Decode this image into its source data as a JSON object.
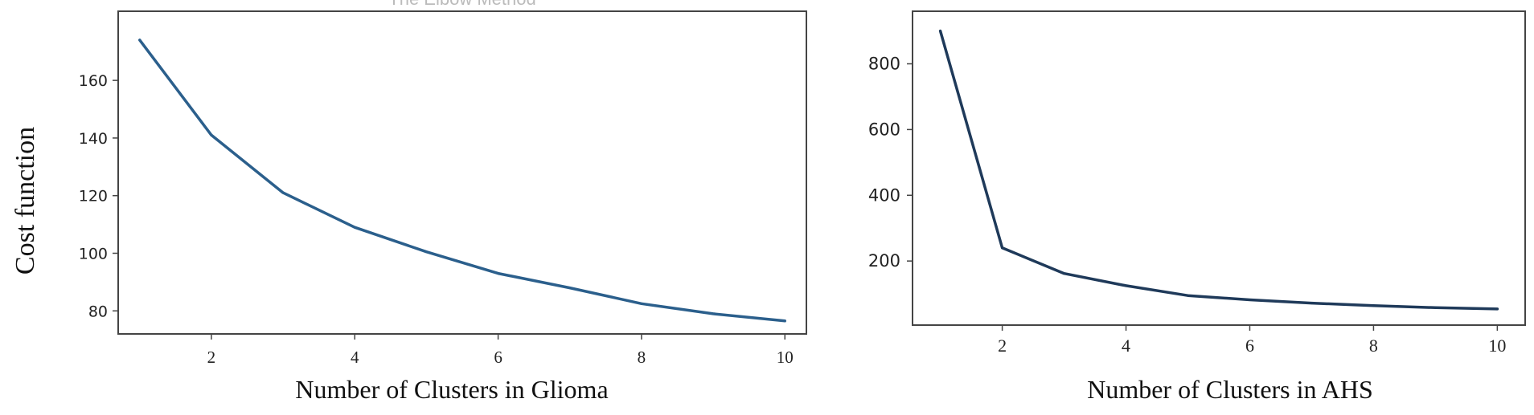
{
  "figure": {
    "ylabel": "Cost function",
    "top_title_fragment": "The Elbow Method"
  },
  "chart_data": [
    {
      "type": "line",
      "title": "",
      "xlabel": "Number of Clusters in Glioma",
      "ylabel": "Cost function",
      "x": [
        1,
        2,
        3,
        4,
        5,
        6,
        7,
        8,
        9,
        10
      ],
      "series": [
        {
          "values": [
            174,
            141,
            121,
            109,
            100.5,
            93,
            88,
            82.5,
            79,
            76.5
          ]
        }
      ],
      "xticks": [
        2,
        4,
        6,
        8,
        10
      ],
      "yticks": [
        80,
        100,
        120,
        140,
        160
      ],
      "xlim": [
        0.7,
        10.3
      ],
      "ylim": [
        72,
        184
      ],
      "grid": false,
      "colors": {
        "line": "#2b5f8c",
        "axes": "#444444"
      }
    },
    {
      "type": "line",
      "title": "",
      "xlabel": "Number of Clusters in AHS",
      "ylabel": "",
      "x": [
        1,
        2,
        3,
        4,
        5,
        6,
        7,
        8,
        9,
        10
      ],
      "series": [
        {
          "values": [
            900,
            240,
            162,
            125,
            95,
            82,
            72,
            64,
            58,
            54
          ]
        }
      ],
      "xticks": [
        2,
        4,
        6,
        8,
        10
      ],
      "yticks": [
        200,
        400,
        600,
        800
      ],
      "xlim": [
        0.55,
        10.45
      ],
      "ylim": [
        5,
        960
      ],
      "grid": false,
      "colors": {
        "line": "#1f3a5a",
        "axes": "#444444"
      }
    }
  ]
}
